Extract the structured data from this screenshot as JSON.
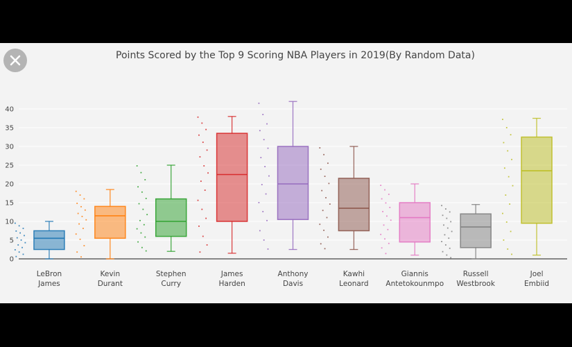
{
  "window": {
    "close_icon": "close-icon"
  },
  "chart_data": {
    "type": "box",
    "title": "Points Scored by the Top 9 Scoring NBA Players in 2019(By Random Data)",
    "xlabel": "",
    "ylabel": "",
    "ylim": [
      0,
      45
    ],
    "yticks": [
      0,
      5,
      10,
      15,
      20,
      25,
      30,
      35,
      40
    ],
    "grid": true,
    "legend": "none",
    "series": [
      {
        "name": [
          "LeBron",
          "James"
        ],
        "color": "#1f77b4",
        "min": 0,
        "q1": 2.5,
        "median": 5.5,
        "q3": 7.5,
        "max": 10,
        "points": [
          9.5,
          8.8,
          8.1,
          7.4,
          6.9,
          6.2,
          5.6,
          5.0,
          4.3,
          3.7,
          3.0,
          2.4,
          1.8,
          1.2,
          0.6
        ]
      },
      {
        "name": [
          "Kevin",
          "Durant"
        ],
        "color": "#ff7f0e",
        "min": 0,
        "q1": 5.5,
        "median": 11.5,
        "q3": 14,
        "max": 18.5,
        "points": [
          18.0,
          17.0,
          16.0,
          14.8,
          13.9,
          13.0,
          12.1,
          11.3,
          10.4,
          9.3,
          8.1,
          6.6,
          5.2,
          3.5,
          1.8,
          0.5
        ]
      },
      {
        "name": [
          "Stephen",
          "Curry"
        ],
        "color": "#2ca02c",
        "min": 2,
        "q1": 6,
        "median": 10,
        "q3": 16,
        "max": 25,
        "points": [
          24.8,
          23.0,
          21.1,
          19.2,
          17.8,
          16.1,
          14.7,
          13.2,
          11.8,
          10.2,
          9.1,
          8.0,
          6.9,
          5.8,
          4.5,
          3.0,
          2.1
        ]
      },
      {
        "name": [
          "James",
          "Harden"
        ],
        "color": "#d62728",
        "min": 1.5,
        "q1": 10,
        "median": 22.5,
        "q3": 33.5,
        "max": 38,
        "points": [
          37.8,
          36.2,
          34.5,
          33.0,
          31.1,
          29.0,
          27.2,
          24.8,
          22.9,
          20.7,
          18.3,
          15.6,
          13.2,
          10.8,
          8.7,
          6.0,
          3.7,
          1.8
        ]
      },
      {
        "name": [
          "Anthony",
          "Davis"
        ],
        "color": "#9467bd",
        "min": 2.5,
        "q1": 10.5,
        "median": 20,
        "q3": 30,
        "max": 42,
        "points": [
          41.5,
          38.5,
          36.0,
          34.2,
          31.8,
          29.5,
          27.0,
          24.6,
          22.1,
          19.8,
          17.3,
          15.0,
          12.6,
          10.2,
          7.5,
          5.0,
          2.6
        ]
      },
      {
        "name": [
          "Kawhi",
          "Leonard"
        ],
        "color": "#8c564b",
        "min": 2.5,
        "q1": 7.5,
        "median": 13.5,
        "q3": 21.5,
        "max": 30,
        "points": [
          29.6,
          27.8,
          25.5,
          23.9,
          22.0,
          20.1,
          18.2,
          16.3,
          14.6,
          12.9,
          11.0,
          9.2,
          7.6,
          5.8,
          4.0,
          2.7
        ]
      },
      {
        "name": [
          "Giannis",
          "Antetokounmpo"
        ],
        "color": "#e377c2",
        "min": 1,
        "q1": 4.5,
        "median": 11,
        "q3": 15,
        "max": 20,
        "points": [
          19.6,
          18.4,
          17.2,
          16.0,
          14.9,
          13.7,
          12.6,
          11.4,
          10.3,
          9.0,
          7.8,
          6.5,
          5.3,
          4.1,
          2.9,
          1.4
        ]
      },
      {
        "name": [
          "Russell",
          "Westbrook"
        ],
        "color": "#7f7f7f",
        "min": 0,
        "q1": 3,
        "median": 8.5,
        "q3": 12,
        "max": 14.5,
        "points": [
          14.2,
          13.3,
          12.5,
          11.6,
          10.8,
          9.9,
          9.0,
          8.2,
          7.3,
          6.4,
          5.5,
          4.6,
          3.7,
          2.8,
          1.9,
          1.0,
          0.3
        ]
      },
      {
        "name": [
          "Joel",
          "Embiid"
        ],
        "color": "#bcbd22",
        "min": 1,
        "q1": 9.5,
        "median": 23.5,
        "q3": 32.5,
        "max": 37.5,
        "points": [
          37.2,
          35.0,
          33.1,
          31.0,
          28.8,
          26.5,
          24.2,
          21.9,
          19.5,
          17.0,
          14.6,
          12.1,
          9.8,
          7.3,
          5.0,
          2.6,
          1.2
        ]
      }
    ]
  }
}
